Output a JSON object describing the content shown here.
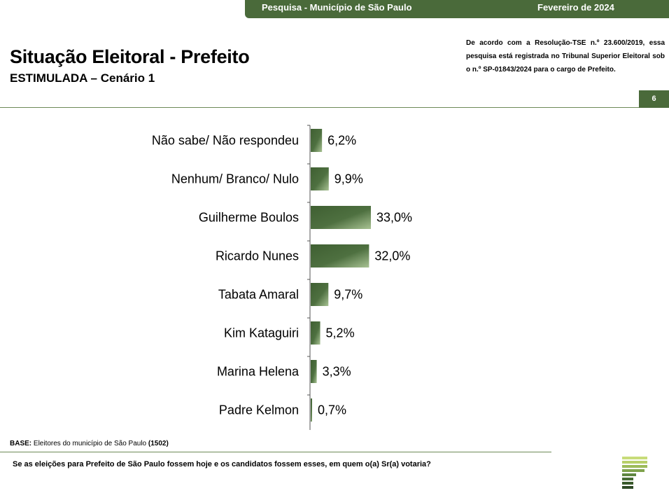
{
  "header": {
    "survey": "Pesquisa - Município de São Paulo",
    "date": "Fevereiro de 2024"
  },
  "title": "Situação Eleitoral - Prefeito",
  "subtitle": "ESTIMULADA – Cenário 1",
  "legal_note": "De acordo com a Resolução-TSE n.º 23.600/2019, essa pesquisa está registrada no Tribunal Superior Eleitoral sob o n.º SP-01843/2024 para o cargo de Prefeito.",
  "page_number": "6",
  "base": {
    "label": "BASE:",
    "text": " Eleitores do município de São Paulo ",
    "count": "(1502)"
  },
  "question": "Se as eleições para Prefeito de São Paulo fossem hoje e os candidatos fossem esses, em quem o(a) Sr(a) votaria?",
  "colors": {
    "primary_green": "#4a6a3a",
    "bar_dark": "#3f5f32",
    "bar_light": "#a8c293",
    "logo_light": "#c8dc7a",
    "logo_dark": "#2f4a26"
  },
  "chart_data": {
    "type": "bar",
    "orientation": "horizontal",
    "title": "",
    "xlabel": "",
    "ylabel": "",
    "categories": [
      "Não sabe/ Não respondeu",
      "Nenhum/ Branco/ Nulo",
      "Guilherme Boulos",
      "Ricardo Nunes",
      "Tabata Amaral",
      "Kim Kataguiri",
      "Marina Helena",
      "Padre Kelmon"
    ],
    "values": [
      6.2,
      9.9,
      33.0,
      32.0,
      9.7,
      5.2,
      3.3,
      0.7
    ],
    "data_labels": [
      "6,2%",
      "9,9%",
      "33,0%",
      "32,0%",
      "9,7%",
      "5,2%",
      "3,3%",
      "0,7%"
    ],
    "xlim": [
      0,
      35
    ],
    "grid": false,
    "legend": "none"
  }
}
